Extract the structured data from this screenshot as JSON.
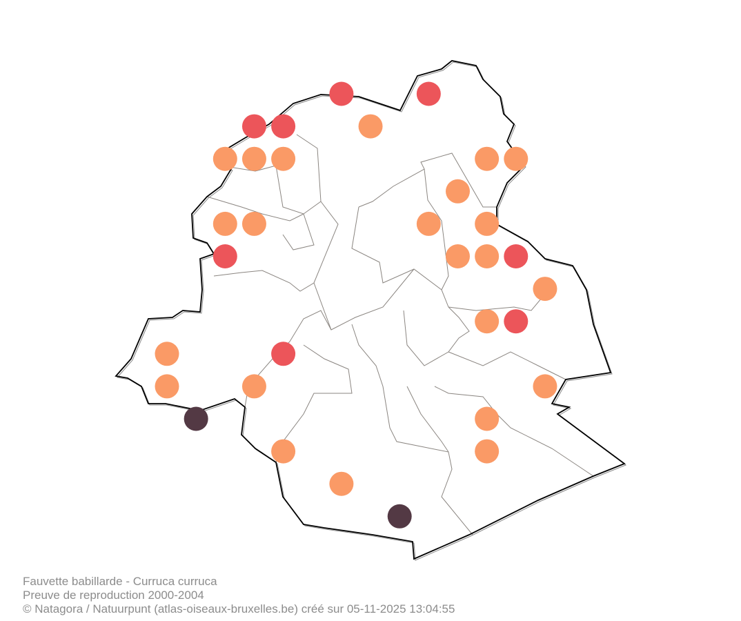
{
  "caption": {
    "species": "Fauvette babillarde - Curruca curruca",
    "subtitle": "Preuve de reproduction 2000-2004",
    "credit": "© Natagora / Natuurpunt (atlas-oiseaux-bruxelles.be) créé sur 05-11-2025 13:04:55"
  },
  "colors": {
    "outline": "#000000",
    "communes": "#8a8580",
    "categories": {
      "orange": "#fa9a66",
      "red": "#ec555a",
      "dark": "#533944"
    }
  },
  "grid_squares": [
    {
      "col": 6,
      "row": 0,
      "cat": "red"
    },
    {
      "col": 9,
      "row": 0,
      "cat": "red"
    },
    {
      "col": 3,
      "row": 1,
      "cat": "red"
    },
    {
      "col": 4,
      "row": 1,
      "cat": "red"
    },
    {
      "col": 7,
      "row": 1,
      "cat": "orange"
    },
    {
      "col": 2,
      "row": 2,
      "cat": "orange"
    },
    {
      "col": 3,
      "row": 2,
      "cat": "orange"
    },
    {
      "col": 4,
      "row": 2,
      "cat": "orange"
    },
    {
      "col": 11,
      "row": 2,
      "cat": "orange"
    },
    {
      "col": 12,
      "row": 2,
      "cat": "orange"
    },
    {
      "col": 10,
      "row": 3,
      "cat": "orange"
    },
    {
      "col": 2,
      "row": 4,
      "cat": "orange"
    },
    {
      "col": 3,
      "row": 4,
      "cat": "orange"
    },
    {
      "col": 9,
      "row": 4,
      "cat": "orange"
    },
    {
      "col": 11,
      "row": 4,
      "cat": "orange"
    },
    {
      "col": 2,
      "row": 5,
      "cat": "red"
    },
    {
      "col": 10,
      "row": 5,
      "cat": "orange"
    },
    {
      "col": 11,
      "row": 5,
      "cat": "orange"
    },
    {
      "col": 12,
      "row": 5,
      "cat": "red"
    },
    {
      "col": 13,
      "row": 6,
      "cat": "orange"
    },
    {
      "col": 11,
      "row": 7,
      "cat": "orange"
    },
    {
      "col": 12,
      "row": 7,
      "cat": "red"
    },
    {
      "col": 0,
      "row": 8,
      "cat": "orange"
    },
    {
      "col": 4,
      "row": 8,
      "cat": "red"
    },
    {
      "col": 0,
      "row": 9,
      "cat": "orange"
    },
    {
      "col": 3,
      "row": 9,
      "cat": "orange"
    },
    {
      "col": 13,
      "row": 9,
      "cat": "orange"
    },
    {
      "col": 1,
      "row": 10,
      "cat": "dark"
    },
    {
      "col": 11,
      "row": 10,
      "cat": "orange"
    },
    {
      "col": 4,
      "row": 11,
      "cat": "orange"
    },
    {
      "col": 11,
      "row": 11,
      "cat": "orange"
    },
    {
      "col": 6,
      "row": 12,
      "cat": "orange"
    },
    {
      "col": 8,
      "row": 13,
      "cat": "dark"
    }
  ]
}
